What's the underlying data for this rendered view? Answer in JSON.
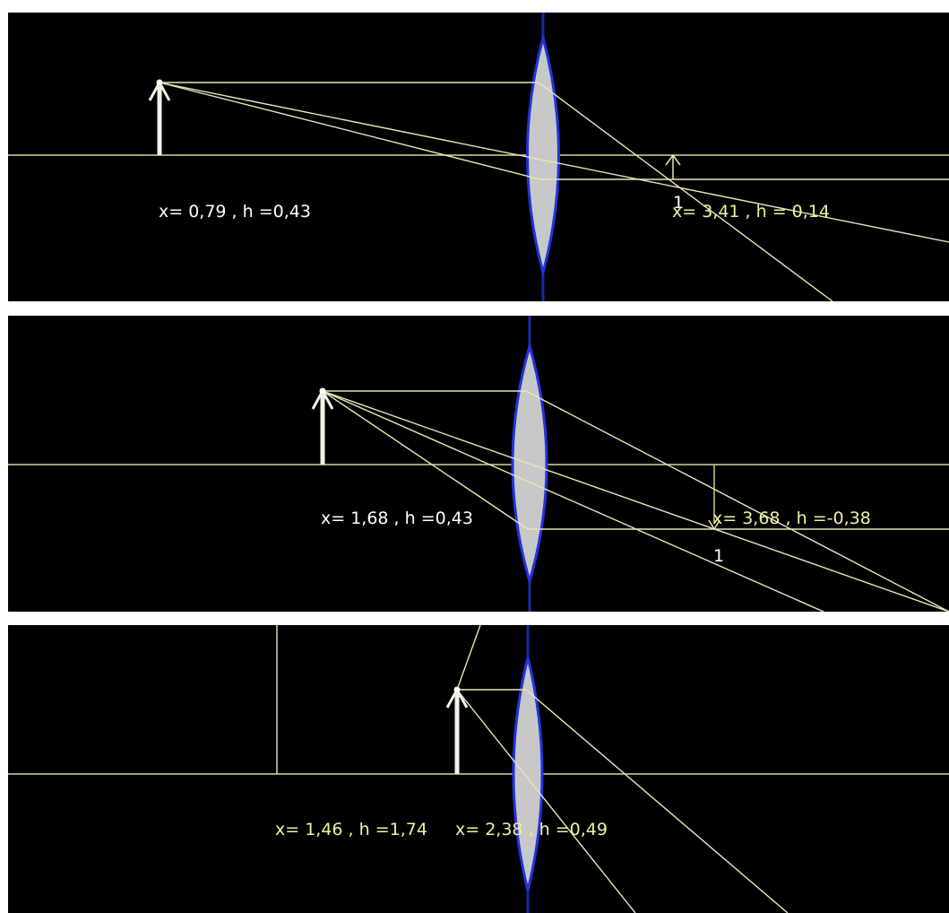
{
  "colors": {
    "background": "#000000",
    "separator": "#ffffff",
    "ray": "#e8e6b8",
    "axis": "#d8d69a",
    "lens_fill": "#c8c8c8",
    "lens_edge": "#2233dd",
    "object_arrow": "#f2f2ea",
    "object_label": "#ffffff",
    "image_label": "#f0f0a0"
  },
  "panels": [
    {
      "object_label": "x= 0,79 , h =0,43",
      "image_label": "x= 3,41 , h = 0,14",
      "marker": "1"
    },
    {
      "object_label": "x= 1,68 , h =0,43",
      "image_label": "x= 3,68 , h =-0,38",
      "marker": "1"
    },
    {
      "object_label": "x= 1,46 , h =1,74",
      "image_label": "x= 2,38 , h =0,49"
    }
  ]
}
